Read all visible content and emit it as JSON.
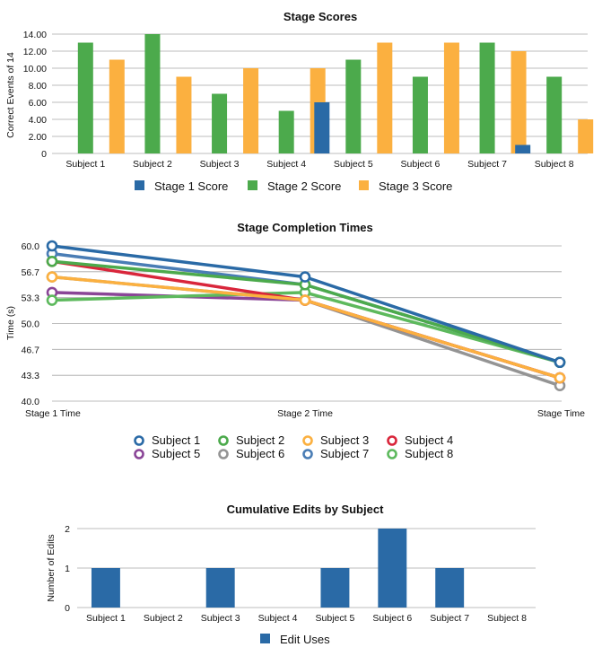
{
  "chart_data": [
    {
      "type": "bar",
      "title": "Stage Scores",
      "xlabel": "",
      "ylabel": "Correct Events of 14",
      "ylim": [
        0,
        14
      ],
      "yticks": [
        "0",
        "2.00",
        "4.00",
        "6.00",
        "8.00",
        "10.00",
        "12.00",
        "14.00"
      ],
      "categories": [
        "Subject 1",
        "Subject 2",
        "Subject 3",
        "Subject 4",
        "Subject 5",
        "Subject 6",
        "Subject 7",
        "Subject 8"
      ],
      "series": [
        {
          "name": "Stage 1 Score",
          "color": "#2a6aa6",
          "values": [
            0,
            0,
            0,
            0,
            6,
            0,
            0,
            1
          ]
        },
        {
          "name": "Stage 2 Score",
          "color": "#4caa4c",
          "values": [
            13,
            14,
            7,
            5,
            11,
            9,
            13,
            9
          ]
        },
        {
          "name": "Stage 3 Score",
          "color": "#fbb040",
          "values": [
            11,
            9,
            10,
            10,
            13,
            13,
            12,
            4
          ]
        }
      ],
      "legend_position": "bottom",
      "grid": true
    },
    {
      "type": "line",
      "title": "Stage Completion Times",
      "xlabel": "",
      "ylabel": "Time (s)",
      "ylim": [
        40,
        60
      ],
      "yticks": [
        "40.0",
        "43.3",
        "46.7",
        "50.0",
        "53.3",
        "56.7",
        "60.0"
      ],
      "categories": [
        "Stage 1 Time",
        "Stage 2 Time",
        "Stage Time"
      ],
      "series": [
        {
          "name": "Subject 1",
          "color": "#2a6aa6",
          "values": [
            60,
            56,
            45
          ]
        },
        {
          "name": "Subject 2",
          "color": "#4caa4c",
          "values": [
            58,
            55,
            45
          ]
        },
        {
          "name": "Subject 3",
          "color": "#fbb040",
          "values": [
            56,
            53,
            43
          ]
        },
        {
          "name": "Subject 4",
          "color": "#d9263b",
          "values": [
            58,
            53,
            43
          ]
        },
        {
          "name": "Subject 5",
          "color": "#8a4597",
          "values": [
            54,
            53,
            43
          ]
        },
        {
          "name": "Subject 6",
          "color": "#949494",
          "values": [
            56,
            53,
            42
          ]
        },
        {
          "name": "Subject 7",
          "color": "#4a7db5",
          "values": [
            59,
            55,
            45
          ]
        },
        {
          "name": "Subject 8",
          "color": "#5db95d",
          "values": [
            53,
            54,
            45
          ]
        }
      ],
      "draw_order": [
        5,
        4,
        7,
        3,
        2,
        6,
        1,
        0
      ],
      "legend_position": "bottom",
      "grid": true
    },
    {
      "type": "bar",
      "title": "Cumulative Edits by Subject",
      "xlabel": "",
      "ylabel": "Number of Edits",
      "ylim": [
        0,
        2
      ],
      "yticks": [
        "0",
        "1",
        "2"
      ],
      "categories": [
        "Subject 1",
        "Subject 2",
        "Subject 3",
        "Subject 4",
        "Subject 5",
        "Subject 6",
        "Subject 7",
        "Subject 8"
      ],
      "series": [
        {
          "name": "Edit Uses",
          "color": "#2a6aa6",
          "values": [
            1,
            0,
            1,
            0,
            1,
            2,
            1,
            0
          ]
        }
      ],
      "legend_position": "bottom",
      "grid": true
    }
  ]
}
